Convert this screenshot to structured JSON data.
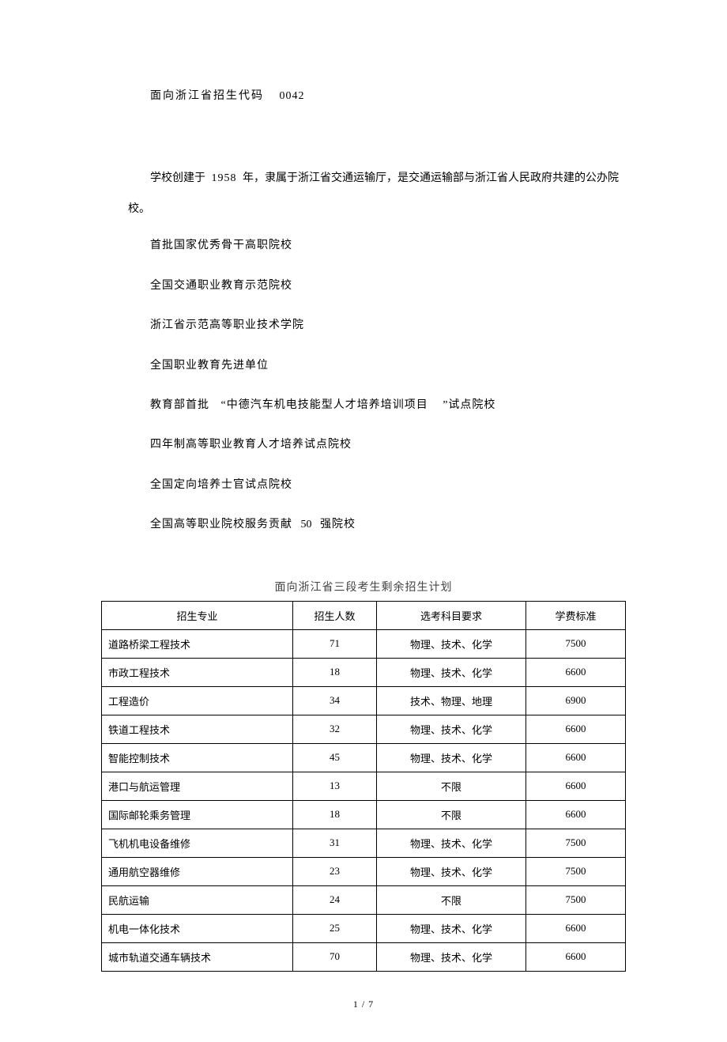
{
  "header": {
    "label": "面向浙江省招生代码",
    "code": "0042"
  },
  "intro": {
    "text_prefix": "学校创建于",
    "year": "1958",
    "text_suffix": "年，隶属于浙江省交通运输厅，是交通运输部与浙江省人民政府共建的公办院校。"
  },
  "bullets": [
    "首批国家优秀骨干高职院校",
    "全国交通职业教育示范院校",
    "浙江省示范高等职业技术学院",
    "全国职业教育先进单位"
  ],
  "bullet_project": {
    "prefix": "教育部首批",
    "quoted": "“中德汽车机电技能型人才培养培训项目",
    "closing": "”试点院校"
  },
  "bullets2": [
    "四年制高等职业教育人才培养试点院校",
    "全国定向培养士官试点院校"
  ],
  "bullet_rank": {
    "prefix": "全国高等职业院校服务贡献",
    "num": "50",
    "suffix": "强院校"
  },
  "table": {
    "title": "面向浙江省三段考生剩余招生计划",
    "columns": [
      "招生专业",
      "招生人数",
      "选考科目要求",
      "学费标准"
    ],
    "rows": [
      [
        "道路桥梁工程技术",
        "71",
        "物理、技术、化学",
        "7500"
      ],
      [
        "市政工程技术",
        "18",
        "物理、技术、化学",
        "6600"
      ],
      [
        "工程造价",
        "34",
        "技术、物理、地理",
        "6900"
      ],
      [
        "铁道工程技术",
        "32",
        "物理、技术、化学",
        "6600"
      ],
      [
        "智能控制技术",
        "45",
        "物理、技术、化学",
        "6600"
      ],
      [
        "港口与航运管理",
        "13",
        "不限",
        "6600"
      ],
      [
        "国际邮轮乘务管理",
        "18",
        "不限",
        "6600"
      ],
      [
        "飞机机电设备维修",
        "31",
        "物理、技术、化学",
        "7500"
      ],
      [
        "通用航空器维修",
        "23",
        "物理、技术、化学",
        "7500"
      ],
      [
        "民航运输",
        "24",
        "不限",
        "7500"
      ],
      [
        "机电一体化技术",
        "25",
        "物理、技术、化学",
        "6600"
      ],
      [
        "城市轨道交通车辆技术",
        "70",
        "物理、技术、化学",
        "6600"
      ]
    ]
  },
  "page": {
    "current": "1",
    "sep": "/",
    "total": "7"
  },
  "style": {
    "background_color": "#ffffff",
    "text_color": "#000000",
    "title_color": "#444444",
    "border_color": "#000000",
    "body_fontsize": 14,
    "table_fontsize": 13
  }
}
